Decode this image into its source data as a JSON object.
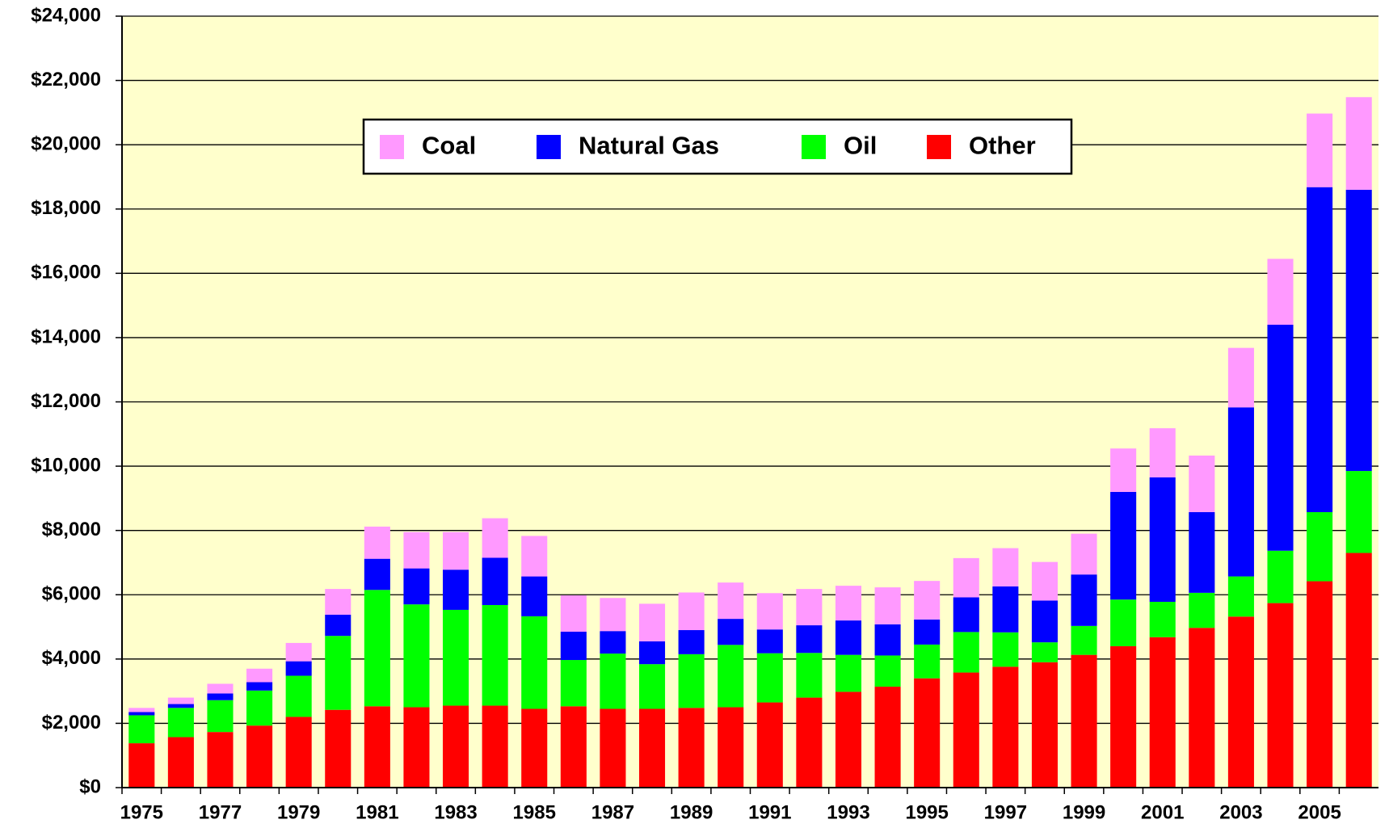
{
  "chart_data": {
    "type": "stacked_bar",
    "categories": [
      "1975",
      null,
      "1977",
      null,
      "1979",
      null,
      "1981",
      null,
      "1983",
      null,
      "1985",
      null,
      "1987",
      null,
      "1989",
      null,
      "1991",
      null,
      "1993",
      null,
      "1995",
      null,
      "1997",
      null,
      "1999",
      null,
      "2001",
      null,
      "2003",
      null,
      "2005",
      null
    ],
    "series": [
      {
        "name": "Coal",
        "color": "#ff99ff",
        "values": [
          130,
          200,
          300,
          420,
          570,
          800,
          1000,
          1130,
          1170,
          1230,
          1260,
          1130,
          1030,
          1170,
          1170,
          1130,
          1130,
          1130,
          1080,
          1150,
          1200,
          1220,
          1190,
          1200,
          1270,
          1350,
          1530,
          1760,
          1850,
          2050,
          2290,
          2880
        ]
      },
      {
        "name": "Natural Gas",
        "color": "#0000ff",
        "values": [
          100,
          120,
          210,
          260,
          450,
          660,
          970,
          1120,
          1250,
          1470,
          1240,
          880,
          700,
          710,
          750,
          810,
          740,
          860,
          1070,
          970,
          780,
          1080,
          1430,
          1300,
          1600,
          3350,
          3870,
          2510,
          5260,
          7030,
          10110,
          8750
        ]
      },
      {
        "name": "Oil",
        "color": "#00ff00",
        "values": [
          870,
          910,
          990,
          1090,
          1280,
          2300,
          3620,
          3200,
          2980,
          3130,
          2880,
          1440,
          1720,
          1390,
          1670,
          1940,
          1530,
          1390,
          1150,
          970,
          1050,
          1260,
          1070,
          620,
          900,
          1450,
          1100,
          1090,
          1250,
          1630,
          2150,
          2550
        ]
      },
      {
        "name": "Other",
        "color": "#ff0000",
        "values": [
          1380,
          1570,
          1730,
          1930,
          2200,
          2420,
          2530,
          2500,
          2550,
          2550,
          2450,
          2530,
          2450,
          2450,
          2480,
          2500,
          2650,
          2800,
          2980,
          3140,
          3400,
          3580,
          3760,
          3900,
          4130,
          4400,
          4680,
          4970,
          5320,
          5740,
          6420,
          7300
        ]
      }
    ],
    "ylim": [
      0,
      24000
    ],
    "yticks": [
      {
        "value": 0,
        "label": "$0"
      },
      {
        "value": 2000,
        "label": "$2,000"
      },
      {
        "value": 4000,
        "label": "$4,000"
      },
      {
        "value": 6000,
        "label": "$6,000"
      },
      {
        "value": 8000,
        "label": "$8,000"
      },
      {
        "value": 10000,
        "label": "$10,000"
      },
      {
        "value": 12000,
        "label": "$12,000"
      },
      {
        "value": 14000,
        "label": "$14,000"
      },
      {
        "value": 16000,
        "label": "$16,000"
      },
      {
        "value": 18000,
        "label": "$18,000"
      },
      {
        "value": 20000,
        "label": "$20,000"
      },
      {
        "value": 22000,
        "label": "$22,000"
      },
      {
        "value": 24000,
        "label": "$24,000"
      }
    ],
    "grid": true,
    "background": "#ffffcc",
    "legend": "top"
  }
}
